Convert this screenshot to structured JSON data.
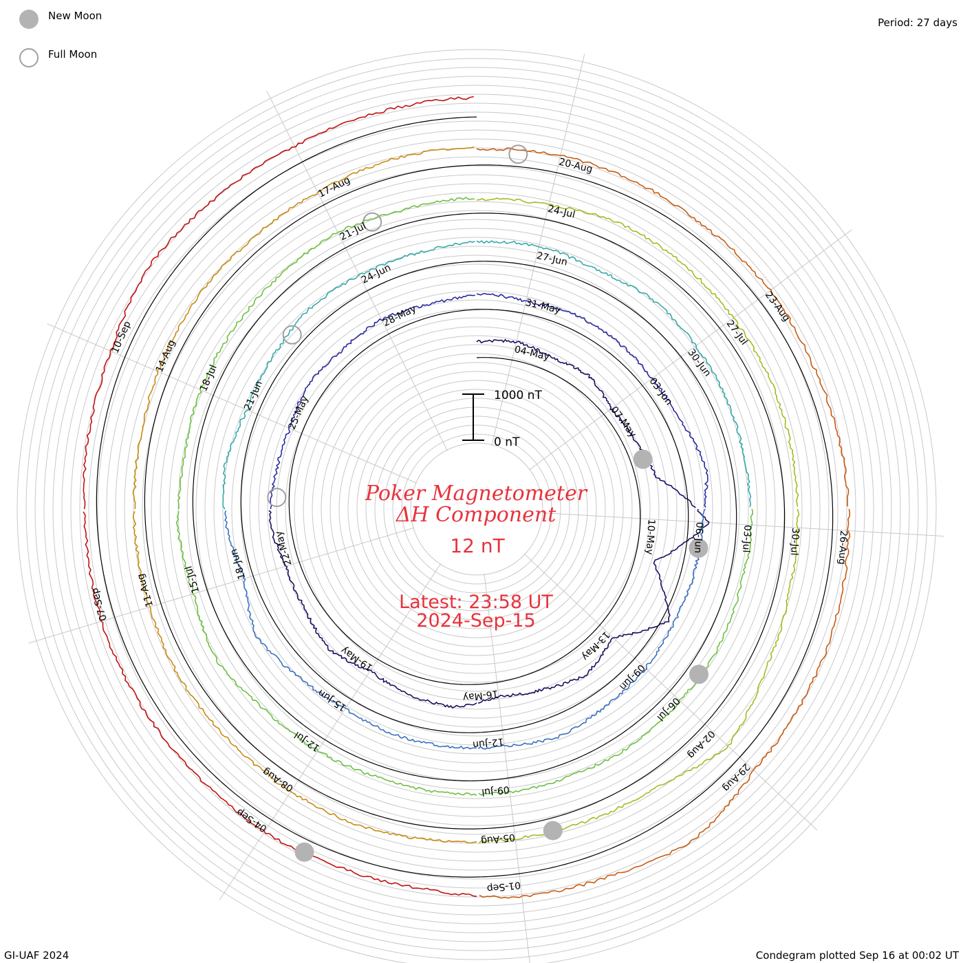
{
  "header": {
    "legend_new_moon": "New Moon",
    "legend_full_moon": "Full Moon",
    "period": "Period: 27 days"
  },
  "center": {
    "title_line1": "Poker Magnetometer",
    "title_line2": "ΔH Component",
    "baseline": "12 nT",
    "latest_line1": "Latest: 23:58 UT",
    "latest_line2": "2024-Sep-15",
    "scale_top": "1000 nT",
    "scale_bottom": "0 nT"
  },
  "footer": {
    "left": "GI-UAF 2024",
    "right": "Condegram plotted Sep 16 at 00:02 UT"
  },
  "colors": {
    "moon_new": "#b3b3b3",
    "moon_full_stroke": "#a0a0a0",
    "grid": "#c8c8c8",
    "baseline": "#000000",
    "text_red": "#e8323c",
    "rings": [
      "#1a1060",
      "#2a2aa0",
      "#3a70c0",
      "#38a8a8",
      "#6cc040",
      "#a8b820",
      "#c88a10",
      "#c85a10",
      "#c01010"
    ]
  },
  "chart_data": {
    "type": "line",
    "title": "Poker Magnetometer ΔH Component",
    "period_days": 27,
    "baseline_nT": 12,
    "scale_nT": [
      0,
      1000
    ],
    "start_date": "2024-05-03",
    "end": "2024-Sep-15 23:58 UT",
    "rings": [
      {
        "start": "2024-05-03",
        "labels": [
          "04-May",
          "07-May",
          "10-May",
          "13-May",
          "16-May",
          "19-May",
          "22-May",
          "25-May",
          "28-May"
        ]
      },
      {
        "start": "2024-05-30",
        "labels": [
          "31-May",
          "03-Jun",
          "06-Jun",
          "09-Jun",
          "12-Jun",
          "15-Jun",
          "18-Jun",
          "21-Jun",
          "24-Jun"
        ]
      },
      {
        "start": "2024-06-26",
        "labels": [
          "27-Jun",
          "30-Jun",
          "03-Jul",
          "06-Jul",
          "09-Jul",
          "12-Jul",
          "15-Jul",
          "18-Jul",
          "21-Jul"
        ]
      },
      {
        "start": "2024-07-23",
        "labels": [
          "24-Jul",
          "27-Jul",
          "30-Jul",
          "02-Aug",
          "05-Aug",
          "08-Aug",
          "11-Aug",
          "14-Aug",
          "17-Aug"
        ]
      },
      {
        "start": "2024-08-19",
        "labels": [
          "20-Aug",
          "23-Aug",
          "26-Aug",
          "29-Aug",
          "01-Sep",
          "04-Sep",
          "07-Sep",
          "10-Sep"
        ]
      }
    ],
    "ring_values": [
      [
        [
          0,
          340
        ],
        [
          1,
          410
        ],
        [
          2,
          300
        ],
        [
          3,
          380
        ],
        [
          4,
          200
        ],
        [
          5,
          260
        ],
        [
          6,
          450
        ],
        [
          7,
          1500
        ],
        [
          8,
          400
        ],
        [
          9,
          1200
        ],
        [
          10,
          380
        ],
        [
          11,
          600
        ],
        [
          12,
          420
        ],
        [
          13,
          300
        ],
        [
          14,
          500
        ],
        [
          15,
          420
        ],
        [
          16,
          300
        ],
        [
          17,
          480
        ],
        [
          18,
          330
        ],
        [
          19,
          300
        ],
        [
          20,
          450
        ],
        [
          21,
          330
        ],
        [
          22,
          280
        ],
        [
          23,
          380
        ],
        [
          24,
          300
        ],
        [
          25,
          350
        ],
        [
          26,
          260
        ],
        [
          27,
          300
        ]
      ],
      [
        [
          0,
          350
        ],
        [
          1,
          260
        ],
        [
          2,
          320
        ],
        [
          3,
          300
        ],
        [
          4,
          260
        ],
        [
          5,
          300
        ],
        [
          6,
          500
        ],
        [
          7,
          300
        ],
        [
          8,
          280
        ],
        [
          9,
          260
        ],
        [
          10,
          320
        ],
        [
          11,
          350
        ],
        [
          12,
          460
        ],
        [
          13,
          350
        ],
        [
          14,
          320
        ],
        [
          15,
          300
        ],
        [
          16,
          240
        ],
        [
          17,
          320
        ],
        [
          18,
          500
        ],
        [
          19,
          200
        ],
        [
          20,
          350
        ],
        [
          21,
          400
        ],
        [
          22,
          250
        ],
        [
          23,
          300
        ],
        [
          24,
          400
        ],
        [
          25,
          380
        ],
        [
          26,
          360
        ],
        [
          27,
          420
        ]
      ],
      [
        [
          0,
          420
        ],
        [
          1,
          450
        ],
        [
          2,
          350
        ],
        [
          3,
          450
        ],
        [
          4,
          400
        ],
        [
          5,
          350
        ],
        [
          6,
          300
        ],
        [
          7,
          330
        ],
        [
          8,
          280
        ],
        [
          9,
          320
        ],
        [
          10,
          300
        ],
        [
          11,
          340
        ],
        [
          12,
          300
        ],
        [
          13,
          310
        ],
        [
          14,
          280
        ],
        [
          15,
          250
        ],
        [
          16,
          280
        ],
        [
          17,
          300
        ],
        [
          18,
          460
        ],
        [
          19,
          300
        ],
        [
          20,
          350
        ],
        [
          21,
          250
        ],
        [
          22,
          300
        ],
        [
          23,
          300
        ],
        [
          24,
          320
        ],
        [
          25,
          380
        ],
        [
          26,
          300
        ],
        [
          27,
          340
        ]
      ],
      [
        [
          0,
          300
        ],
        [
          1,
          320
        ],
        [
          2,
          440
        ],
        [
          3,
          420
        ],
        [
          4,
          360
        ],
        [
          5,
          340
        ],
        [
          6,
          300
        ],
        [
          7,
          280
        ],
        [
          8,
          300
        ],
        [
          9,
          420
        ],
        [
          10,
          700
        ],
        [
          11,
          340
        ],
        [
          12,
          300
        ],
        [
          13,
          280
        ],
        [
          14,
          280
        ],
        [
          15,
          320
        ],
        [
          16,
          300
        ],
        [
          17,
          270
        ],
        [
          18,
          300
        ],
        [
          19,
          250
        ],
        [
          20,
          240
        ],
        [
          21,
          220
        ],
        [
          22,
          260
        ],
        [
          23,
          300
        ],
        [
          24,
          280
        ],
        [
          25,
          300
        ],
        [
          26,
          380
        ],
        [
          27,
          400
        ]
      ],
      [
        [
          0,
          340
        ],
        [
          1,
          380
        ],
        [
          2,
          350
        ],
        [
          3,
          300
        ],
        [
          4,
          320
        ],
        [
          5,
          280
        ],
        [
          6,
          320
        ],
        [
          7,
          350
        ],
        [
          8,
          380
        ],
        [
          9,
          400
        ],
        [
          10,
          420
        ],
        [
          11,
          700
        ],
        [
          12,
          550
        ],
        [
          13,
          500
        ],
        [
          14,
          320
        ],
        [
          15,
          280
        ],
        [
          16,
          300
        ],
        [
          17,
          260
        ],
        [
          18,
          280
        ],
        [
          19,
          300
        ],
        [
          20,
          260
        ],
        [
          21,
          300
        ],
        [
          22,
          320
        ],
        [
          23,
          500
        ],
        [
          24,
          420
        ],
        [
          25,
          380
        ],
        [
          26,
          400
        ],
        [
          27,
          420
        ]
      ]
    ],
    "moon_phases": [
      {
        "phase": "new",
        "date": "2024-05-08"
      },
      {
        "phase": "full",
        "date": "2024-05-23"
      },
      {
        "phase": "new",
        "date": "2024-06-06"
      },
      {
        "phase": "full",
        "date": "2024-06-22"
      },
      {
        "phase": "new",
        "date": "2024-07-05"
      },
      {
        "phase": "full",
        "date": "2024-07-21"
      },
      {
        "phase": "new",
        "date": "2024-08-04"
      },
      {
        "phase": "full",
        "date": "2024-08-19"
      },
      {
        "phase": "new",
        "date": "2024-09-03"
      }
    ]
  }
}
